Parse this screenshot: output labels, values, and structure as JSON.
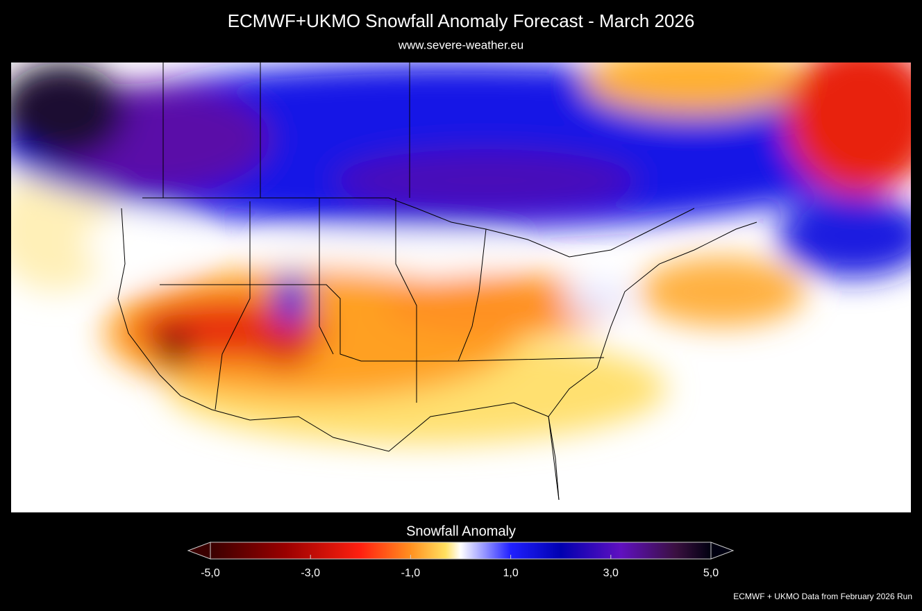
{
  "title": "ECMWF+UKMO Snowfall Anomaly Forecast  -  March 2026",
  "subtitle": "www.severe-weather.eu",
  "colorbar": {
    "label": "Snowfall Anomaly",
    "range": [
      -5,
      5
    ],
    "ticks": [
      {
        "value": -5,
        "label": "-5,0"
      },
      {
        "value": -3,
        "label": "-3,0"
      },
      {
        "value": -1,
        "label": "-1,0"
      },
      {
        "value": 1,
        "label": "1,0"
      },
      {
        "value": 3,
        "label": "3,0"
      },
      {
        "value": 5,
        "label": "5,0"
      }
    ]
  },
  "footer": "ECMWF + UKMO Data from February 2026 Run"
}
